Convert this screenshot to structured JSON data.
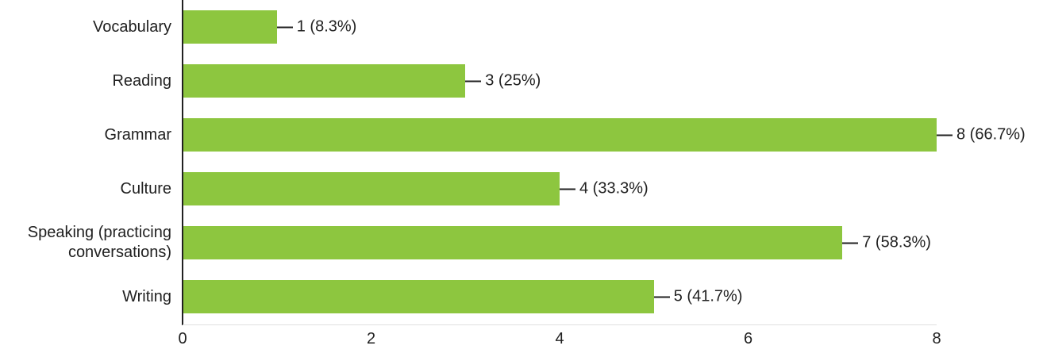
{
  "chart_data": {
    "type": "bar",
    "orientation": "horizontal",
    "title": "",
    "xlabel": "",
    "ylabel": "",
    "categories": [
      "Vocabulary",
      "Reading",
      "Grammar",
      "Culture",
      "Speaking (practicing conversations)",
      "Writing"
    ],
    "values": [
      1,
      3,
      8,
      4,
      7,
      5
    ],
    "value_labels": [
      "1 (8.3%)",
      "3 (25%)",
      "8 (66.7%)",
      "4 (33.3%)",
      "7 (58.3%)",
      "5 (41.7%)"
    ],
    "xticks": [
      0,
      2,
      4,
      6,
      8
    ],
    "xlim": [
      0,
      8
    ],
    "grid": false,
    "legend": false,
    "bar_color": "#8dc63f",
    "axis_color": "#212121",
    "text_color": "#212121"
  }
}
